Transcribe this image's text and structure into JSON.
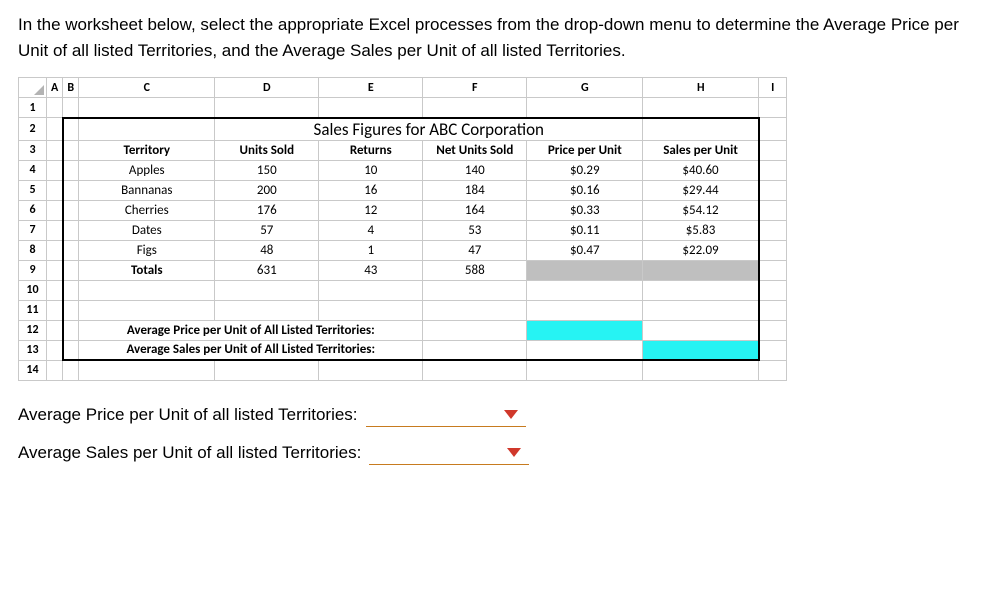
{
  "instructions": "In the worksheet below, select the appropriate Excel processes from the drop-down menu to determine the Average Price per Unit of all listed Territories, and the Average Sales per Unit of all listed Territories.",
  "sheet": {
    "col_headers": [
      "A",
      "B",
      "C",
      "D",
      "E",
      "F",
      "G",
      "H",
      "I"
    ],
    "row_headers": [
      "1",
      "2",
      "3",
      "4",
      "5",
      "6",
      "7",
      "8",
      "9",
      "10",
      "11",
      "12",
      "13",
      "14"
    ],
    "title": "Sales Figures for ABC Corporation",
    "headers": {
      "territory": "Territory",
      "units_sold": "Units Sold",
      "returns": "Returns",
      "net_units_sold": "Net Units Sold",
      "price_per_unit": "Price per Unit",
      "sales_per_unit": "Sales per Unit"
    },
    "data_rows": [
      {
        "territory": "Apples",
        "units_sold": "150",
        "returns": "10",
        "net": "140",
        "price": "$0.29",
        "sales": "$40.60"
      },
      {
        "territory": "Bannanas",
        "units_sold": "200",
        "returns": "16",
        "net": "184",
        "price": "$0.16",
        "sales": "$29.44"
      },
      {
        "territory": "Cherries",
        "units_sold": "176",
        "returns": "12",
        "net": "164",
        "price": "$0.33",
        "sales": "$54.12"
      },
      {
        "territory": "Dates",
        "units_sold": "57",
        "returns": "4",
        "net": "53",
        "price": "$0.11",
        "sales": "$5.83"
      },
      {
        "territory": "Figs",
        "units_sold": "48",
        "returns": "1",
        "net": "47",
        "price": "$0.47",
        "sales": "$22.09"
      }
    ],
    "totals": {
      "label": "Totals",
      "units_sold": "631",
      "returns": "43",
      "net": "588"
    },
    "avg_label_price": "Average Price per Unit of All Listed Territories:",
    "avg_label_sales": "Average Sales per Unit of All Listed Territories:"
  },
  "questions": {
    "q1": "Average Price per Unit of all listed Territories:",
    "q2": "Average Sales per Unit of all listed Territories:"
  },
  "colors": {
    "grey_fill": "#bfbfbf",
    "cyan_fill": "#26f3f3",
    "dropdown_underline": "#c77b1f",
    "caret": "#d0382b"
  }
}
